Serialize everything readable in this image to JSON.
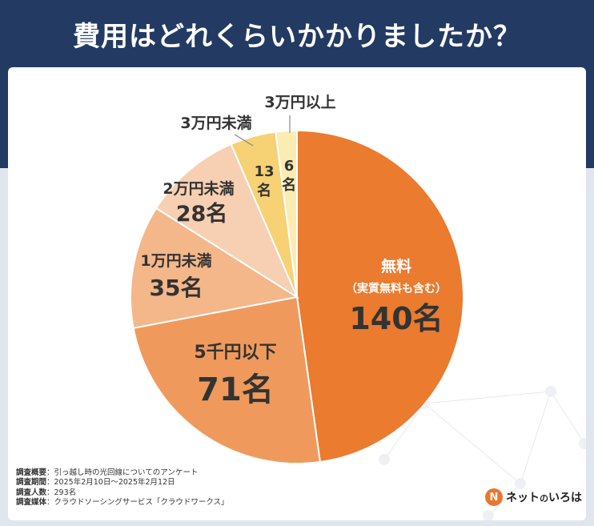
{
  "title": "費用はどれくらいかかりましたか？",
  "chart_data": {
    "type": "pie",
    "total": 293,
    "unit": "名",
    "slices": [
      {
        "label": "無料",
        "sublabel": "（実質無料も含む）",
        "value": 140,
        "value_text": "140名",
        "color": "#ea7b2f"
      },
      {
        "label": "5千円以下",
        "value": 71,
        "value_text": "71名",
        "color": "#ef9a5c"
      },
      {
        "label": "1万円未満",
        "value": 35,
        "value_text": "35名",
        "color": "#f4b789"
      },
      {
        "label": "2万円未満",
        "value": 28,
        "value_text": "28名",
        "color": "#f7cfb2"
      },
      {
        "label": "3万円未満",
        "value": 13,
        "value_text_lines": [
          "13",
          "名"
        ],
        "color": "#f6d274"
      },
      {
        "label": "3万円以上",
        "value": 6,
        "value_text_lines": [
          "6",
          "名"
        ],
        "color": "#fbecb3"
      }
    ]
  },
  "footer": {
    "rows": [
      {
        "key": "調査概要",
        "value": "：引っ越し時の光回線についてのアンケート"
      },
      {
        "key": "調査期間",
        "value": "：2025年2月10日～2025年2月12日"
      },
      {
        "key": "調査人数",
        "value": "：293名"
      },
      {
        "key": "調査媒体",
        "value": "：クラウドソーシングサービス「クラウドワークス」"
      }
    ]
  },
  "logo": {
    "icon": "N",
    "text_a": "ネット",
    "text_b": "の",
    "text_c": "いろは"
  }
}
